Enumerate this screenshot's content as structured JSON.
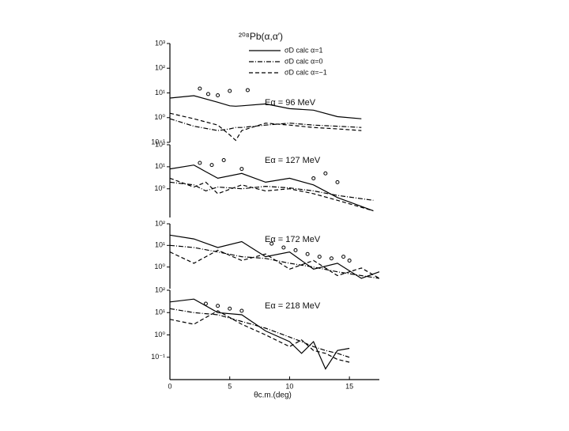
{
  "chart_data": [
    {
      "type": "line",
      "title": "²⁰⁸Pb(α,α′)",
      "annotation": "Eα = 96 MeV",
      "log_y": true,
      "xlim": [
        0,
        17.5
      ],
      "ylim": [
        0.1,
        1000
      ],
      "yticks": [
        {
          "value": 1000,
          "label": "10³"
        },
        {
          "value": 100,
          "label": "10²"
        },
        {
          "value": 10,
          "label": "10¹"
        },
        {
          "value": 1,
          "label": "10⁰"
        },
        {
          "value": 0.1,
          "label": "10⁻¹"
        }
      ],
      "x": [
        0,
        2,
        4,
        5,
        5.5,
        6,
        8,
        10,
        12,
        14,
        16
      ],
      "series": [
        {
          "name": "σD calc α=1",
          "color": "#000",
          "values": [
            6.2,
            7.7,
            4.2,
            3,
            2.9,
            3,
            3.6,
            2.3,
            2,
            1.1,
            0.9
          ]
        },
        {
          "name": "σD calc α=0",
          "color": "#000",
          "values": [
            0.9,
            0.45,
            0.3,
            0.35,
            0.4,
            0.4,
            0.5,
            0.6,
            0.5,
            0.45,
            0.4
          ]
        },
        {
          "name": "σD calc α=−1",
          "color": "#000",
          "values": [
            1.5,
            0.9,
            0.5,
            0.2,
            0.12,
            0.3,
            0.6,
            0.5,
            0.4,
            0.35,
            0.3
          ]
        }
      ],
      "points": {
        "x": [
          2.5,
          3.2,
          4,
          5,
          6.5
        ],
        "values": [
          15,
          9,
          8,
          12,
          13
        ]
      }
    },
    {
      "type": "line",
      "annotation": "Eα = 127 MeV",
      "log_y": true,
      "xlim": [
        0,
        17.5
      ],
      "ylim": [
        0.05,
        100
      ],
      "yticks": [
        {
          "value": 100,
          "label": "10²"
        },
        {
          "value": 10,
          "label": "10¹"
        },
        {
          "value": 1,
          "label": "10⁰"
        }
      ],
      "x": [
        0,
        2,
        3,
        4,
        6,
        8,
        10,
        12,
        14,
        17
      ],
      "series": [
        {
          "name": "α=1",
          "color": "#000",
          "values": [
            8,
            12,
            6,
            3,
            5,
            2,
            3,
            1.5,
            0.4,
            0.1
          ]
        },
        {
          "name": "α=0",
          "color": "#000",
          "values": [
            2,
            1.5,
            0.8,
            1.2,
            1,
            1.3,
            1.1,
            0.8,
            0.5,
            0.3
          ]
        },
        {
          "name": "α=−1",
          "color": "#000",
          "values": [
            3,
            1.2,
            2,
            0.6,
            1.5,
            0.8,
            1,
            0.6,
            0.3,
            0.1
          ]
        }
      ],
      "points": {
        "x": [
          2.5,
          3.5,
          4.5,
          6,
          12,
          13,
          14
        ],
        "values": [
          15,
          12,
          20,
          8,
          3,
          5,
          2
        ]
      }
    },
    {
      "type": "line",
      "annotation": "Eα = 172 MeV",
      "log_y": true,
      "xlim": [
        0,
        17.5
      ],
      "ylim": [
        0.1,
        100
      ],
      "yticks": [
        {
          "value": 100,
          "label": "10²"
        },
        {
          "value": 10,
          "label": "10¹"
        },
        {
          "value": 1,
          "label": "10⁰"
        }
      ],
      "x": [
        0,
        2,
        4,
        6,
        8,
        10,
        12,
        14,
        16,
        17.5
      ],
      "series": [
        {
          "name": "α=1",
          "color": "#000",
          "values": [
            30,
            20,
            8,
            15,
            3,
            5,
            0.8,
            1.5,
            0.3,
            0.6
          ]
        },
        {
          "name": "α=0",
          "color": "#000",
          "values": [
            10,
            8,
            5,
            3,
            2.5,
            1.5,
            1,
            0.6,
            0.4,
            0.3
          ]
        },
        {
          "name": "α=−1",
          "color": "#000",
          "values": [
            5,
            1.5,
            6,
            2,
            4,
            0.8,
            2,
            0.4,
            0.9,
            0.3
          ]
        }
      ],
      "points": {
        "x": [
          8.5,
          9.5,
          10.5,
          11.5,
          12.5,
          13.5,
          14.5,
          15
        ],
        "values": [
          12,
          8,
          6,
          4,
          3,
          2.5,
          3,
          2
        ]
      }
    },
    {
      "type": "line",
      "annotation": "Eα = 218 MeV",
      "log_y": true,
      "xlabel": "θc.m.(deg)",
      "xlim": [
        0,
        17.5
      ],
      "ylim": [
        0.01,
        100
      ],
      "xticks": [
        0,
        5,
        10,
        15
      ],
      "yticks": [
        {
          "value": 100,
          "label": "10²"
        },
        {
          "value": 10,
          "label": "10¹"
        },
        {
          "value": 1,
          "label": "10⁰"
        },
        {
          "value": 0.1,
          "label": "10⁻¹"
        }
      ],
      "x": [
        0,
        2,
        4,
        6,
        8,
        10,
        11,
        12,
        13,
        14,
        15
      ],
      "series": [
        {
          "name": "α=1",
          "color": "#000",
          "values": [
            30,
            40,
            10,
            8,
            1.5,
            0.5,
            0.15,
            0.5,
            0.03,
            0.2,
            0.25
          ]
        },
        {
          "name": "α=0",
          "color": "#000",
          "values": [
            15,
            10,
            8,
            4,
            2,
            0.8,
            0.5,
            0.3,
            0.2,
            0.15,
            0.1
          ]
        },
        {
          "name": "α=−1",
          "color": "#000",
          "values": [
            5,
            3,
            12,
            3,
            1,
            0.3,
            0.6,
            0.2,
            0.15,
            0.08,
            0.06
          ]
        }
      ],
      "points": {
        "x": [
          3,
          4,
          5,
          6
        ],
        "values": [
          25,
          20,
          15,
          12
        ]
      }
    }
  ]
}
